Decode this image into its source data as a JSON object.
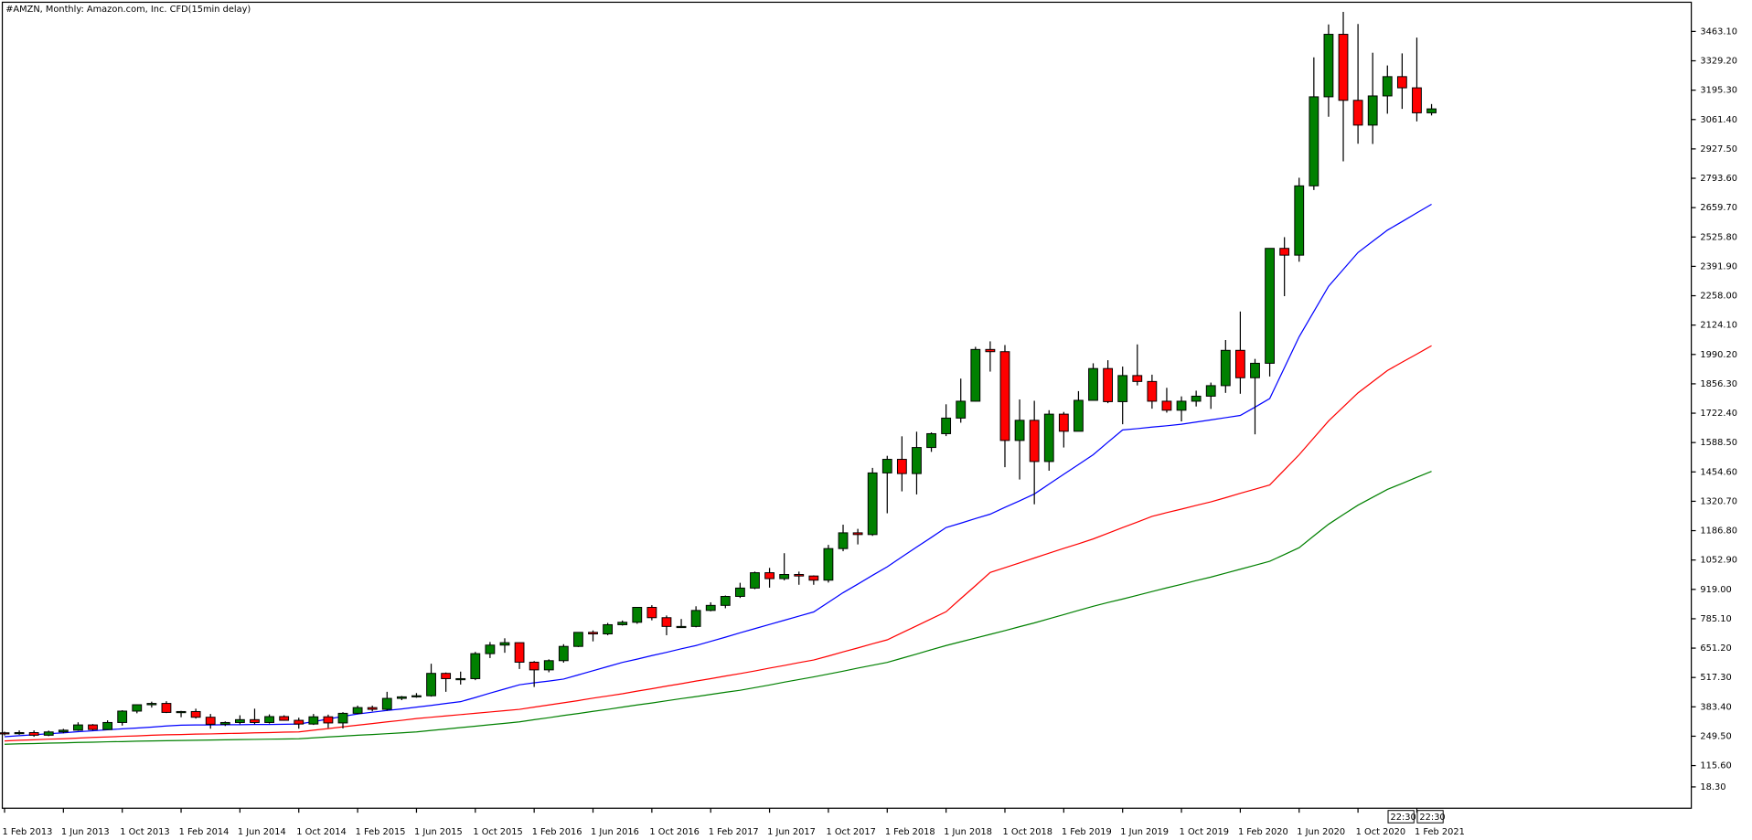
{
  "chart_data": {
    "type": "candlestick",
    "title": "#AMZN, Monthly:  Amazon.com, Inc. CFD(15min delay)",
    "up_color": "#008000",
    "down_color": "#ff0000",
    "categories": [
      "1 Feb 2013",
      null,
      null,
      null,
      "1 Jun 2013",
      null,
      null,
      null,
      "1 Oct 2013",
      null,
      null,
      null,
      "1 Feb 2014",
      null,
      null,
      null,
      "1 Jun 2014",
      null,
      null,
      null,
      "1 Oct 2014",
      null,
      null,
      null,
      "1 Feb 2015",
      null,
      null,
      null,
      "1 Jun 2015",
      null,
      null,
      null,
      "1 Oct 2015",
      null,
      null,
      null,
      "1 Feb 2016",
      null,
      null,
      null,
      "1 Jun 2016",
      null,
      null,
      null,
      "1 Oct 2016",
      null,
      null,
      null,
      "1 Feb 2017",
      null,
      null,
      null,
      "1 Jun 2017",
      null,
      null,
      null,
      "1 Oct 2017",
      null,
      null,
      null,
      "1 Feb 2018",
      null,
      null,
      null,
      "1 Jun 2018",
      null,
      null,
      null,
      "1 Oct 2018",
      null,
      null,
      null,
      "1 Feb 2019",
      null,
      null,
      null,
      "1 Jun 2019",
      null,
      null,
      null,
      "1 Oct 2019",
      null,
      null,
      null,
      "1 Feb 2020",
      null,
      null,
      null,
      "1 Jun 2020",
      null,
      null,
      null,
      "1 Oct 2020",
      null,
      null,
      null,
      "1 Feb 2021",
      null
    ],
    "ohlc": {
      "open": [
        265,
        264,
        266,
        254,
        269,
        277,
        301,
        280,
        312,
        364,
        393,
        399,
        358,
        362,
        336,
        304,
        312,
        325,
        312,
        339,
        322,
        305,
        338,
        310,
        354,
        380,
        372,
        422,
        429,
        434,
        536,
        512,
        512,
        626,
        665,
        676,
        587,
        552,
        594,
        659,
        723,
        716,
        758,
        769,
        837,
        790,
        750,
        750,
        823,
        846,
        887,
        925,
        995,
        968,
        987,
        980,
        961,
        1105,
        1177,
        1169,
        1450,
        1512,
        1447,
        1566,
        1629,
        1700,
        1777,
        2013,
        2003,
        1598,
        1690,
        1502,
        1718,
        1640,
        1781,
        1926,
        1775,
        1894,
        1867,
        1777,
        1736,
        1777,
        1800,
        1848,
        2009,
        1884,
        1950,
        2474,
        2443,
        2759,
        3165,
        3450,
        3149,
        3036,
        3169,
        3257,
        3206,
        3092
      ],
      "high": [
        270,
        276,
        276,
        275,
        283,
        313,
        305,
        322,
        368,
        394,
        407,
        409,
        365,
        375,
        351,
        317,
        345,
        375,
        349,
        345,
        334,
        351,
        348,
        359,
        389,
        389,
        452,
        433,
        446,
        580,
        540,
        544,
        634,
        679,
        696,
        677,
        592,
        600,
        669,
        724,
        732,
        766,
        777,
        839,
        847,
        800,
        784,
        842,
        860,
        891,
        949,
        1000,
        1017,
        1084,
        1000,
        983,
        1122,
        1214,
        1195,
        1473,
        1528,
        1617,
        1638,
        1635,
        1763,
        1880,
        2025,
        2050,
        2033,
        1785,
        1779,
        1736,
        1728,
        1823,
        1950,
        1964,
        1935,
        2036,
        1898,
        1838,
        1799,
        1825,
        1862,
        2056,
        2186,
        1970,
        2475,
        2525,
        2796,
        3345,
        3495,
        3552,
        3497,
        3366,
        3308,
        3363,
        3435,
        3132
      ],
      "low": [
        253,
        256,
        247,
        250,
        263,
        274,
        276,
        279,
        298,
        354,
        380,
        355,
        336,
        330,
        284,
        296,
        304,
        304,
        307,
        320,
        284,
        301,
        287,
        285,
        350,
        363,
        366,
        414,
        425,
        430,
        452,
        485,
        505,
        606,
        630,
        556,
        474,
        541,
        585,
        656,
        682,
        710,
        754,
        762,
        778,
        710,
        743,
        746,
        819,
        833,
        880,
        920,
        927,
        960,
        940,
        940,
        950,
        1093,
        1124,
        1163,
        1266,
        1366,
        1352,
        1546,
        1618,
        1679,
        1776,
        1912,
        1476,
        1420,
        1307,
        1460,
        1566,
        1640,
        1781,
        1768,
        1672,
        1849,
        1743,
        1725,
        1685,
        1753,
        1742,
        1815,
        1811,
        1626,
        1890,
        2256,
        2413,
        2740,
        3074,
        2871,
        2951,
        2950,
        3088,
        3110,
        3053,
        3080
      ],
      "close": [
        264,
        266,
        254,
        269,
        277,
        301,
        280,
        312,
        364,
        393,
        399,
        358,
        362,
        336,
        304,
        312,
        325,
        312,
        339,
        322,
        305,
        338,
        310,
        354,
        380,
        372,
        422,
        429,
        434,
        536,
        512,
        512,
        626,
        665,
        676,
        587,
        552,
        594,
        659,
        723,
        716,
        758,
        769,
        837,
        790,
        750,
        750,
        823,
        846,
        887,
        925,
        995,
        968,
        987,
        980,
        961,
        1105,
        1177,
        1169,
        1450,
        1512,
        1447,
        1566,
        1629,
        1700,
        1777,
        2013,
        2003,
        1598,
        1690,
        1502,
        1718,
        1640,
        1781,
        1926,
        1775,
        1894,
        1867,
        1777,
        1736,
        1777,
        1800,
        1848,
        2009,
        1884,
        1950,
        2474,
        2443,
        2759,
        3165,
        3450,
        3149,
        3036,
        3169,
        3257,
        3206,
        3092,
        3110
      ]
    },
    "moving_averages": [
      {
        "color": "#0000ff",
        "values": [
          247,
          252,
          256,
          261,
          265,
          270,
          274,
          279,
          283,
          287,
          291,
          296,
          300,
          301,
          301,
          302,
          302,
          303,
          303,
          304,
          305,
          316,
          328,
          340,
          351,
          359,
          367,
          374,
          382,
          390,
          399,
          407,
          426,
          446,
          465,
          484,
          493,
          501,
          510,
          529,
          548,
          567,
          586,
          601,
          617,
          632,
          648,
          663,
          682,
          701,
          721,
          740,
          759,
          778,
          797,
          816,
          860,
          904,
          943,
          983,
          1022,
          1067,
          1112,
          1156,
          1201,
          1221,
          1242,
          1262,
          1293,
          1323,
          1354,
          1399,
          1444,
          1488,
          1533,
          1590,
          1646,
          1652,
          1659,
          1665,
          1672,
          1682,
          1692,
          1702,
          1712,
          1750,
          1789,
          1930,
          2071,
          2186,
          2301,
          2378,
          2455,
          2506,
          2557,
          2596,
          2636,
          2675
        ]
      },
      {
        "color": "#ff0000",
        "values": [
          228,
          231,
          233,
          236,
          238,
          241,
          244,
          246,
          249,
          251,
          254,
          256,
          257,
          259,
          260,
          262,
          263,
          265,
          266,
          268,
          269,
          277,
          284,
          292,
          300,
          307,
          315,
          322,
          330,
          336,
          342,
          348,
          354,
          360,
          366,
          372,
          382,
          392,
          402,
          412,
          423,
          433,
          443,
          455,
          466,
          478,
          489,
          501,
          512,
          524,
          535,
          547,
          560,
          572,
          585,
          597,
          615,
          634,
          652,
          671,
          689,
          721,
          753,
          785,
          817,
          877,
          936,
          996,
          1018,
          1040,
          1062,
          1084,
          1106,
          1127,
          1149,
          1175,
          1201,
          1226,
          1252,
          1269,
          1285,
          1302,
          1318,
          1337,
          1357,
          1376,
          1395,
          1464,
          1533,
          1610,
          1687,
          1751,
          1815,
          1866,
          1917,
          1955,
          1992,
          2030
        ]
      },
      {
        "color": "#008000",
        "values": [
          213,
          215,
          216,
          218,
          219,
          221,
          222,
          224,
          225,
          227,
          228,
          229,
          230,
          231,
          232,
          233,
          234,
          235,
          236,
          237,
          238,
          242,
          246,
          250,
          254,
          257,
          261,
          265,
          269,
          276,
          282,
          289,
          295,
          302,
          308,
          315,
          325,
          334,
          344,
          353,
          363,
          372,
          382,
          392,
          401,
          411,
          421,
          430,
          440,
          450,
          459,
          471,
          483,
          496,
          508,
          520,
          533,
          546,
          560,
          573,
          586,
          605,
          624,
          644,
          663,
          680,
          697,
          714,
          731,
          749,
          766,
          785,
          804,
          823,
          842,
          859,
          875,
          892,
          909,
          926,
          942,
          959,
          975,
          993,
          1011,
          1029,
          1047,
          1078,
          1109,
          1163,
          1216,
          1260,
          1303,
          1339,
          1375,
          1402,
          1430,
          1457
        ]
      }
    ],
    "ylim": [
      -78.9,
      3596.2
    ],
    "yticks": [
      {
        "value": 18.3,
        "label": "18.30"
      },
      {
        "value": 115.6,
        "label": "115.60"
      },
      {
        "value": 249.5,
        "label": "249.50"
      },
      {
        "value": 383.4,
        "label": "383.40"
      },
      {
        "value": 517.3,
        "label": "517.30"
      },
      {
        "value": 651.2,
        "label": "651.20"
      },
      {
        "value": 785.1,
        "label": "785.10"
      },
      {
        "value": 919,
        "label": "919.00"
      },
      {
        "value": 1052.9,
        "label": "1052.90"
      },
      {
        "value": 1186.8,
        "label": "1186.80"
      },
      {
        "value": 1320.7,
        "label": "1320.70"
      },
      {
        "value": 1454.6,
        "label": "1454.60"
      },
      {
        "value": 1588.5,
        "label": "1588.50"
      },
      {
        "value": 1722.4,
        "label": "1722.40"
      },
      {
        "value": 1856.3,
        "label": "1856.30"
      },
      {
        "value": 1990.2,
        "label": "1990.20"
      },
      {
        "value": 2124.1,
        "label": "2124.10"
      },
      {
        "value": 2258,
        "label": "2258.00"
      },
      {
        "value": 2391.9,
        "label": "2391.90"
      },
      {
        "value": 2525.8,
        "label": "2525.80"
      },
      {
        "value": 2659.7,
        "label": "2659.70"
      },
      {
        "value": 2793.6,
        "label": "2793.60"
      },
      {
        "value": 2927.5,
        "label": "2927.50"
      },
      {
        "value": 3061.4,
        "label": "3061.40"
      },
      {
        "value": 3195.3,
        "label": "3195.30"
      },
      {
        "value": 3329.2,
        "label": "3329.20"
      },
      {
        "value": 3463.1,
        "label": "3463.10"
      }
    ],
    "time_markers": [
      "22:30",
      "22:30"
    ]
  }
}
